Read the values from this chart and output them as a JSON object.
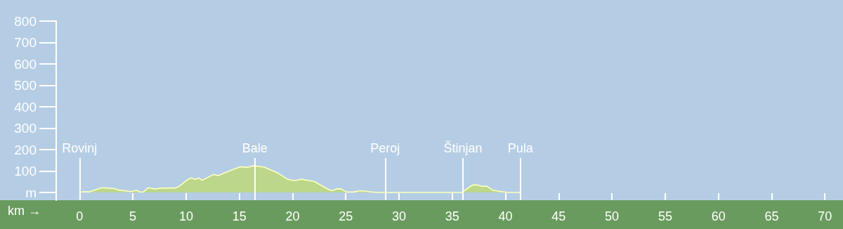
{
  "chart_data": {
    "type": "area",
    "xlabel": "km →",
    "x": [
      0.07,
      0.95,
      2.05,
      2.8,
      3.25,
      3.7,
      4.8,
      5.35,
      5.7,
      6.0,
      6.45,
      7.1,
      7.45,
      9.0,
      9.4,
      10.1,
      10.5,
      10.85,
      11.2,
      11.5,
      12.6,
      13.0,
      14.5,
      15.1,
      15.8,
      16.35,
      17.35,
      18.65,
      19.5,
      20.2,
      20.85,
      22.05,
      23.4,
      23.8,
      24.15,
      24.6,
      25.05,
      25.7,
      26.35,
      27.9,
      28.75,
      30.7,
      35.9,
      36.9,
      37.35,
      37.8,
      38.25,
      38.8,
      39.6,
      40.25,
      41.35
    ],
    "series": [
      {
        "color": "#bcd68c",
        "values": [
          3,
          3,
          22,
          20,
          18,
          11,
          4,
          10,
          2,
          3,
          22,
          16,
          20,
          21,
          30,
          59,
          68,
          61,
          68,
          57,
          84,
          79,
          109,
          120,
          117,
          125,
          118,
          90,
          62,
          55,
          62,
          51,
          13,
          9,
          17,
          16,
          2,
          2,
          8,
          0,
          0,
          0,
          0,
          35,
          35,
          29,
          29,
          11,
          4,
          0,
          0
        ]
      }
    ],
    "xlim": [
      -2.2,
      71.7
    ],
    "xticks": [
      0,
      5,
      10,
      15,
      20,
      25,
      30,
      35,
      40,
      45,
      50,
      55,
      60,
      65,
      70
    ],
    "ylim": [
      -36,
      800
    ],
    "yticks": [
      {
        "value": 0,
        "label": "m"
      },
      100,
      200,
      300,
      400,
      500,
      600,
      700,
      800
    ],
    "ref_lines": [
      {
        "axis": "x",
        "value": 0,
        "label": "Rovinj",
        "color": "#ffffff"
      },
      {
        "axis": "x",
        "value": 16.45,
        "label": "Bale",
        "color": "#ffffff"
      },
      {
        "axis": "x",
        "value": 28.7,
        "label": "Peroj",
        "color": "#ffffff"
      },
      {
        "axis": "x",
        "value": 36.0,
        "label": "Štinjan",
        "color": "#ffffff"
      },
      {
        "axis": "x",
        "value": 41.4,
        "label": "Pula",
        "color": "#ffffff"
      }
    ]
  }
}
